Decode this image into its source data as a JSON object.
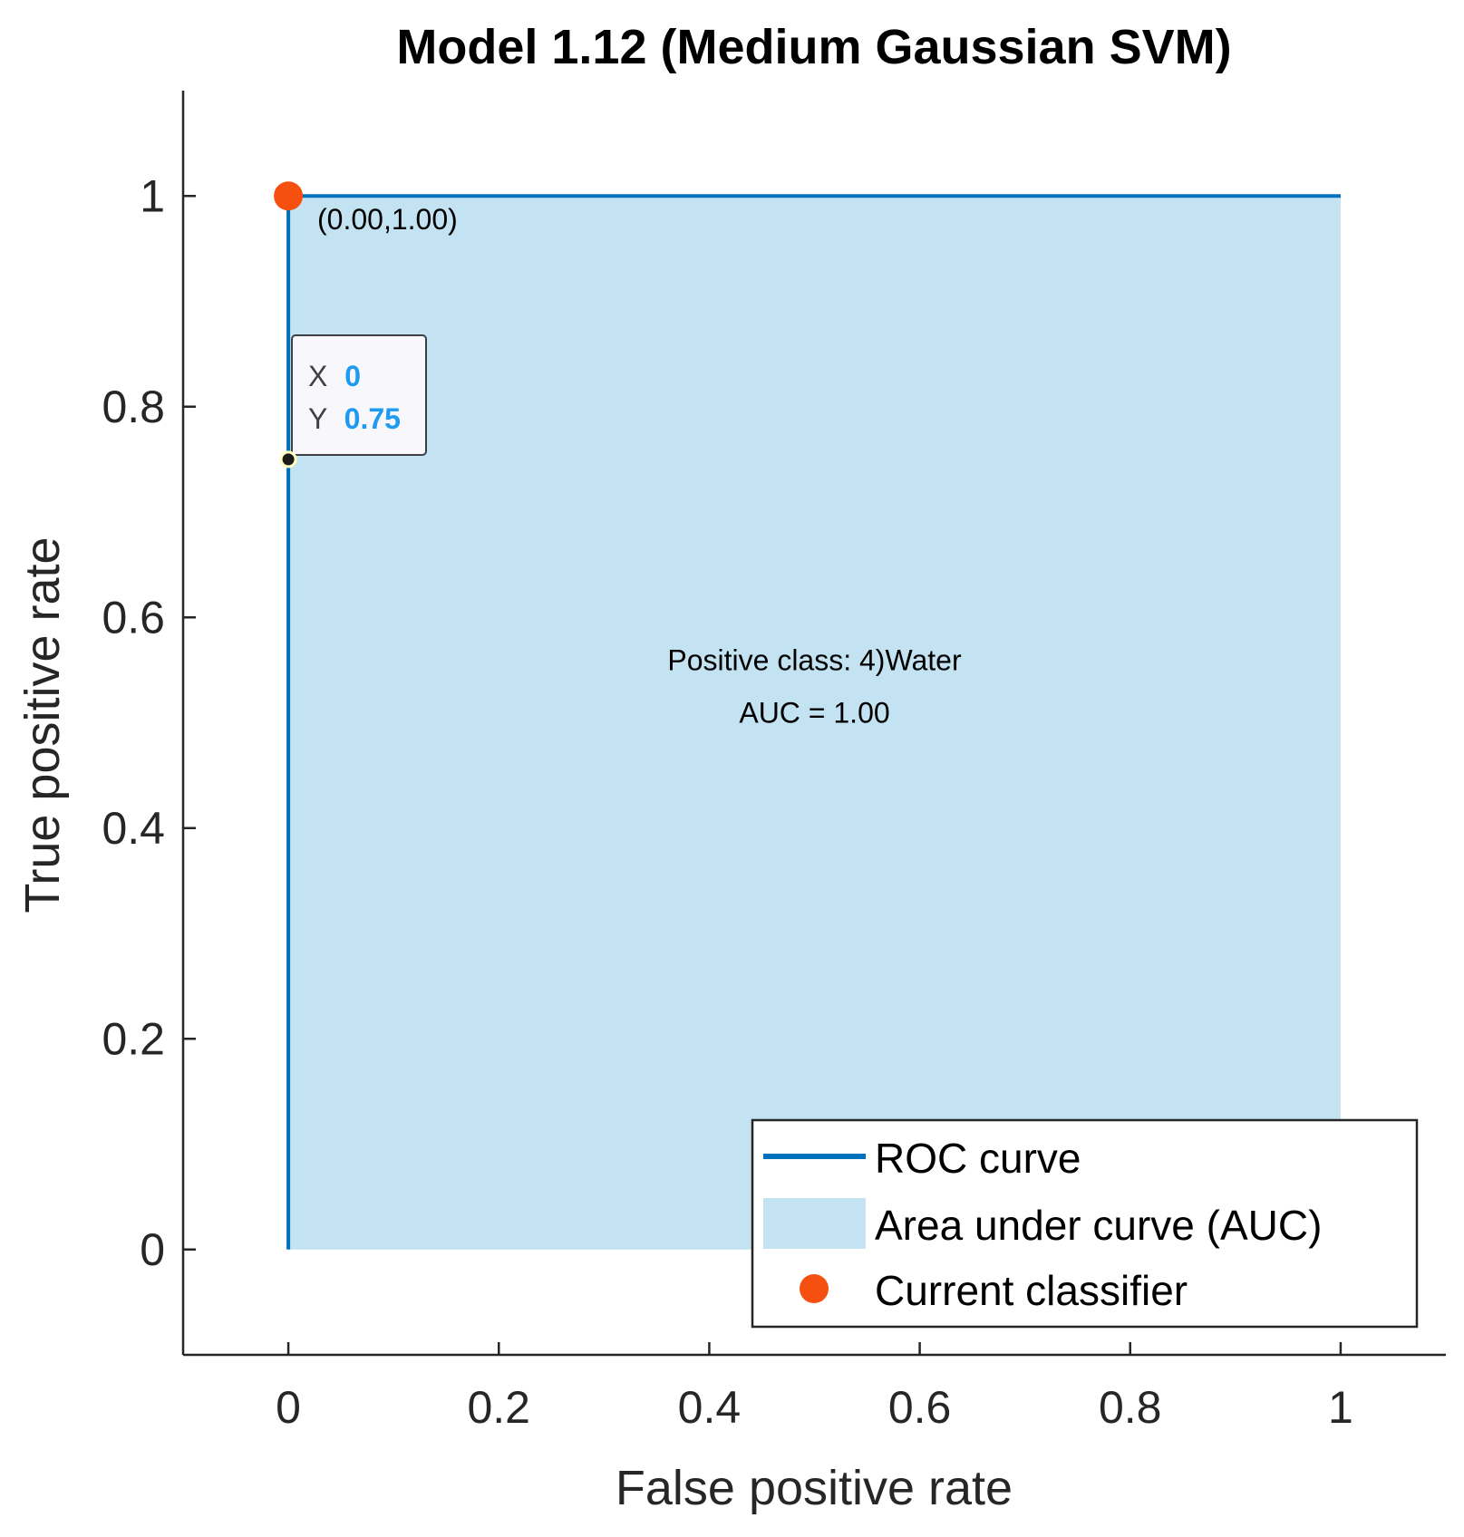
{
  "chart_data": {
    "type": "line",
    "title": "Model 1.12 (Medium Gaussian SVM)",
    "xlabel": "False positive rate",
    "ylabel": "True positive rate",
    "xlim": [
      -0.1,
      1.1
    ],
    "ylim": [
      -0.1,
      1.1
    ],
    "xticks": [
      0,
      0.2,
      0.4,
      0.6,
      0.8,
      1
    ],
    "yticks": [
      0,
      0.2,
      0.4,
      0.6,
      0.8,
      1
    ],
    "xtick_labels": [
      "0",
      "0.2",
      "0.4",
      "0.6",
      "0.8",
      "1"
    ],
    "ytick_labels": [
      "0",
      "0.2",
      "0.4",
      "0.6",
      "0.8",
      "1"
    ],
    "grid": false,
    "series": [
      {
        "name": "ROC curve",
        "kind": "line",
        "color": "#0072BD",
        "x": [
          0,
          0,
          1
        ],
        "y": [
          0,
          1,
          1
        ]
      },
      {
        "name": "Area under curve (AUC)",
        "kind": "area",
        "color": "#C3E2F2",
        "x": [
          0,
          0,
          1,
          1
        ],
        "y": [
          0,
          1,
          1,
          0
        ]
      },
      {
        "name": "Current classifier",
        "kind": "scatter",
        "color": "#F5500F",
        "x": [
          0
        ],
        "y": [
          1
        ]
      }
    ],
    "annotations": {
      "current_point_label": "(0.00,1.00)",
      "center_text_line1": "Positive class: 4)Water",
      "center_text_line2": "AUC = 1.00",
      "center_text_x": 0.5,
      "center_text_y": 0.55
    },
    "datatip": {
      "x": 0,
      "y": 0.75,
      "x_label": "X",
      "y_label": "Y",
      "x_value": "0",
      "y_value": "0.75"
    },
    "legend": {
      "placement": "bottom-right",
      "entries": [
        "ROC curve",
        "Area under curve (AUC)",
        "Current classifier"
      ]
    }
  }
}
